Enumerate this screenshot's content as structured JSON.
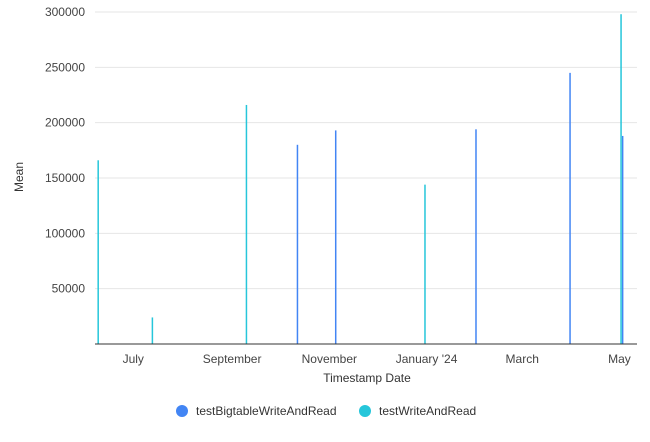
{
  "chart_data": {
    "type": "bar",
    "xlabel": "Timestamp Date",
    "ylabel": "Mean",
    "ylim": [
      0,
      300000
    ],
    "yticks": [
      50000,
      100000,
      150000,
      200000,
      250000,
      300000
    ],
    "yticklabels": [
      "50000",
      "100000",
      "150000",
      "200000",
      "250000",
      "300000"
    ],
    "xlim": [
      "2023-06-07",
      "2024-05-12"
    ],
    "xticks": [
      {
        "date": "2023-07-01",
        "label": "July"
      },
      {
        "date": "2023-09-01",
        "label": "September"
      },
      {
        "date": "2023-11-01",
        "label": "November"
      },
      {
        "date": "2024-01-01",
        "label": "January '24"
      },
      {
        "date": "2024-03-01",
        "label": "March"
      },
      {
        "date": "2024-05-01",
        "label": "May"
      }
    ],
    "grid": true,
    "legend_position": "bottom",
    "series": [
      {
        "name": "testBigtableWriteAndRead",
        "color": "#4285f4",
        "points": [
          {
            "x": "2023-10-12",
            "y": 180000
          },
          {
            "x": "2023-11-05",
            "y": 193000
          },
          {
            "x": "2024-02-01",
            "y": 194000
          },
          {
            "x": "2024-03-31",
            "y": 245000
          },
          {
            "x": "2024-05-03",
            "y": 188000
          }
        ]
      },
      {
        "name": "testWriteAndRead",
        "color": "#26c6da",
        "points": [
          {
            "x": "2023-06-09",
            "y": 166000
          },
          {
            "x": "2023-07-13",
            "y": 24000
          },
          {
            "x": "2023-09-10",
            "y": 216000
          },
          {
            "x": "2023-12-31",
            "y": 144000
          },
          {
            "x": "2024-05-02",
            "y": 298000
          }
        ]
      }
    ]
  }
}
